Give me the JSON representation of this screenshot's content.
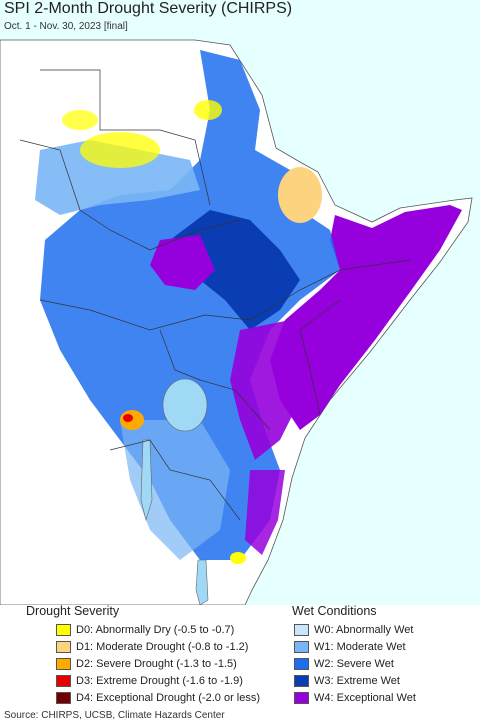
{
  "header": {
    "title": "SPI 2-Month Drought Severity (CHIRPS)",
    "subtitle": "Oct. 1 - Nov. 30, 2023 [final]"
  },
  "legend": {
    "drought": {
      "title": "Drought Severity",
      "items": [
        {
          "label": "D0: Abnormally Dry (-0.5 to -0.7)",
          "color": "#ffff00"
        },
        {
          "label": "D1: Moderate Drought (-0.8 to -1.2)",
          "color": "#fcd37f"
        },
        {
          "label": "D2: Severe Drought (-1.3 to -1.5)",
          "color": "#ffaa00"
        },
        {
          "label": "D3: Extreme Drought (-1.6 to -1.9)",
          "color": "#e60000"
        },
        {
          "label": "D4: Exceptional Drought (-2.0 or less)",
          "color": "#730000"
        }
      ]
    },
    "wet": {
      "title": "Wet Conditions",
      "items": [
        {
          "label": "W0: Abnormally Wet",
          "color": "#c8e6fa"
        },
        {
          "label": "W1: Moderate Wet",
          "color": "#7ab6f5"
        },
        {
          "label": "W2: Severe Wet",
          "color": "#1e6ef0"
        },
        {
          "label": "W3: Extreme Wet",
          "color": "#0a3cb4"
        },
        {
          "label": "W4: Exceptional Wet",
          "color": "#9600dc"
        }
      ]
    }
  },
  "footer": {
    "source": "Source: CHIRPS, UCSB, Climate Hazards Center"
  }
}
